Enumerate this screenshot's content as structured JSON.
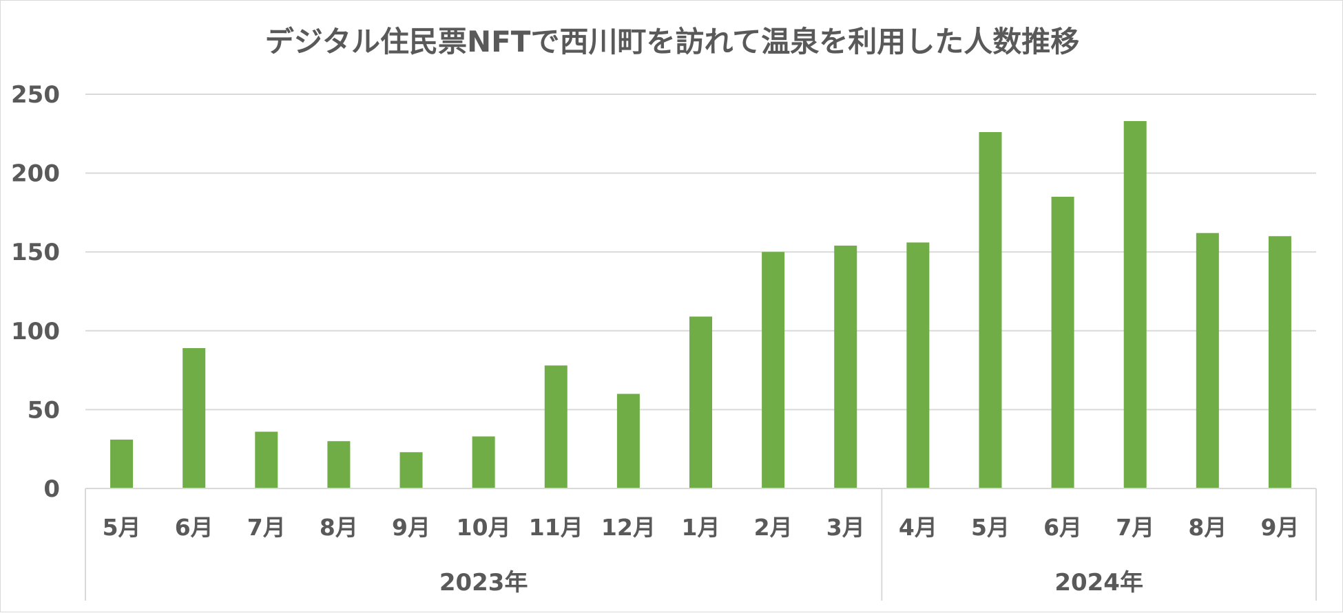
{
  "chart_data": {
    "type": "bar",
    "title": "デジタル住民票NFTで西川町を訪れて温泉を利用した人数推移",
    "xlabel": "",
    "ylabel": "",
    "ylim": [
      0,
      250
    ],
    "yticks": [
      "0",
      "50",
      "100",
      "150",
      "200",
      "250"
    ],
    "categories": [
      "5月",
      "6月",
      "7月",
      "8月",
      "9月",
      "10月",
      "11月",
      "12月",
      "1月",
      "2月",
      "3月",
      "4月",
      "5月",
      "6月",
      "7月",
      "8月",
      "9月"
    ],
    "values": [
      31,
      89,
      36,
      30,
      23,
      33,
      78,
      60,
      109,
      150,
      154,
      156,
      226,
      185,
      233,
      162,
      160
    ],
    "groups": [
      {
        "label": "2023年",
        "count": 11
      },
      {
        "label": "2024年",
        "count": 6
      }
    ],
    "bar_color": "#70AD47",
    "grid": true,
    "legend": "none"
  }
}
